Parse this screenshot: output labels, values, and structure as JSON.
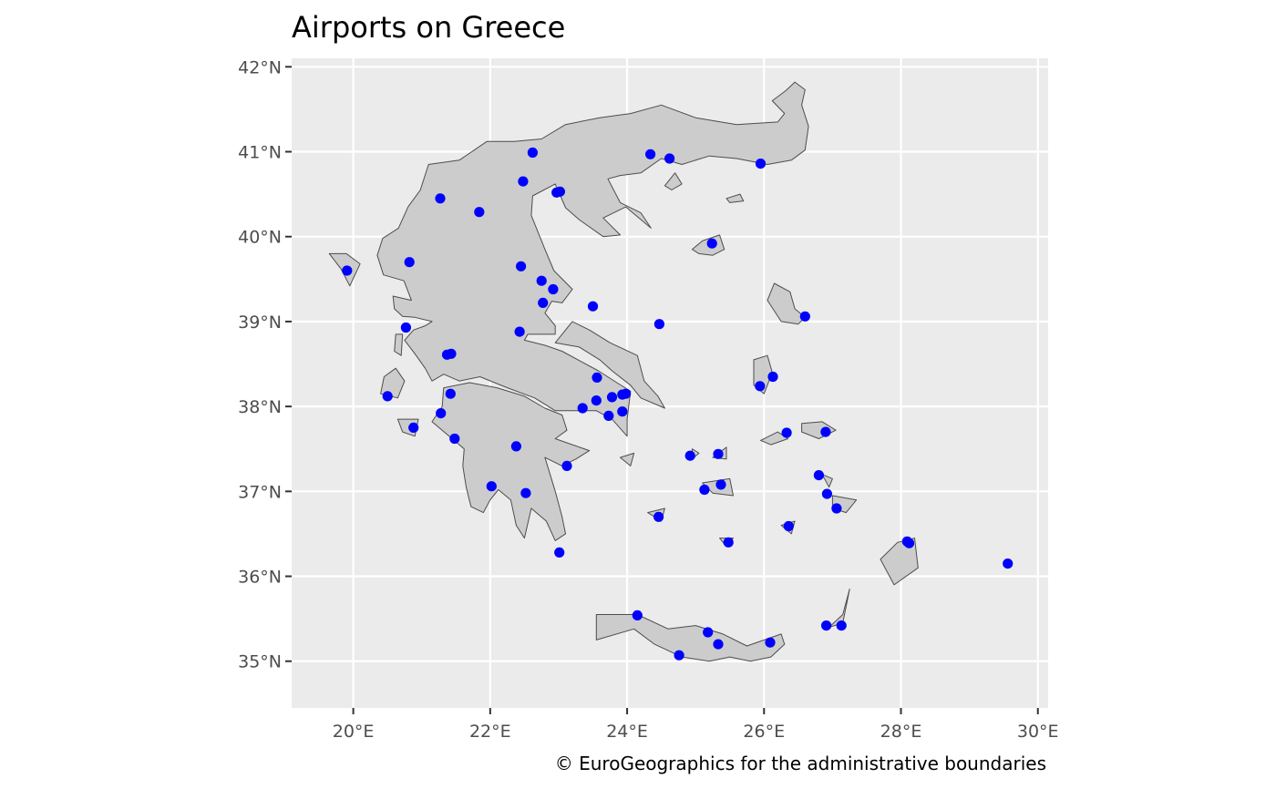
{
  "title": "Airports on Greece",
  "caption": "© EuroGeographics for the administrative boundaries",
  "axes": {
    "lon_range": [
      19.1,
      30.15
    ],
    "lat_range": [
      34.45,
      42.1
    ],
    "lon_ticks": [
      20,
      22,
      24,
      26,
      28,
      30
    ],
    "lat_ticks": [
      35,
      36,
      37,
      38,
      39,
      40,
      41,
      42
    ],
    "lon_labels": [
      "20°E",
      "22°E",
      "24°E",
      "26°E",
      "28°E",
      "30°E"
    ],
    "lat_labels": [
      "35°N",
      "36°N",
      "37°N",
      "38°N",
      "39°N",
      "40°N",
      "41°N",
      "42°N"
    ]
  },
  "colors": {
    "panel": "#ebebeb",
    "land": "#cccccc",
    "border": "#4d4d4d",
    "airport": "#0000ff"
  },
  "mainland": [
    [
      20.85,
      39.25
    ],
    [
      20.74,
      39.48
    ],
    [
      20.44,
      39.55
    ],
    [
      20.35,
      39.78
    ],
    [
      20.43,
      39.98
    ],
    [
      20.66,
      40.1
    ],
    [
      20.8,
      40.35
    ],
    [
      20.98,
      40.55
    ],
    [
      21.1,
      40.85
    ],
    [
      21.55,
      40.9
    ],
    [
      21.95,
      41.12
    ],
    [
      22.35,
      41.12
    ],
    [
      22.75,
      41.15
    ],
    [
      23.1,
      41.32
    ],
    [
      23.6,
      41.4
    ],
    [
      24.05,
      41.45
    ],
    [
      24.5,
      41.55
    ],
    [
      25.0,
      41.4
    ],
    [
      25.6,
      41.32
    ],
    [
      26.2,
      41.35
    ],
    [
      26.3,
      41.45
    ],
    [
      26.12,
      41.6
    ],
    [
      26.32,
      41.72
    ],
    [
      26.45,
      41.82
    ],
    [
      26.6,
      41.73
    ],
    [
      26.55,
      41.55
    ],
    [
      26.65,
      41.3
    ],
    [
      26.6,
      41.02
    ],
    [
      26.4,
      40.9
    ],
    [
      26.05,
      40.85
    ],
    [
      25.6,
      40.92
    ],
    [
      25.2,
      40.95
    ],
    [
      24.8,
      40.85
    ],
    [
      24.5,
      40.92
    ],
    [
      24.2,
      40.75
    ],
    [
      23.9,
      40.72
    ],
    [
      23.72,
      40.68
    ],
    [
      23.9,
      40.4
    ],
    [
      24.2,
      40.28
    ],
    [
      24.35,
      40.1
    ],
    [
      23.98,
      40.35
    ],
    [
      23.65,
      40.22
    ],
    [
      23.9,
      40.02
    ],
    [
      23.65,
      40.0
    ],
    [
      23.3,
      40.2
    ],
    [
      23.1,
      40.34
    ],
    [
      22.95,
      40.62
    ],
    [
      22.62,
      40.48
    ],
    [
      22.6,
      40.25
    ],
    [
      22.8,
      39.85
    ],
    [
      22.93,
      39.6
    ],
    [
      23.2,
      39.38
    ],
    [
      23.05,
      39.22
    ],
    [
      22.9,
      39.24
    ],
    [
      22.8,
      39.1
    ],
    [
      22.95,
      38.95
    ],
    [
      22.95,
      38.85
    ],
    [
      22.55,
      38.85
    ],
    [
      22.5,
      38.78
    ],
    [
      22.8,
      38.72
    ],
    [
      23.05,
      38.65
    ],
    [
      23.35,
      38.52
    ],
    [
      23.58,
      38.42
    ],
    [
      23.85,
      38.28
    ],
    [
      24.05,
      38.18
    ],
    [
      24.0,
      37.85
    ],
    [
      24.0,
      37.65
    ],
    [
      23.78,
      37.85
    ],
    [
      23.55,
      37.95
    ],
    [
      23.25,
      37.95
    ],
    [
      22.95,
      37.95
    ],
    [
      22.65,
      38.1
    ],
    [
      22.25,
      38.22
    ],
    [
      21.85,
      38.35
    ],
    [
      21.55,
      38.3
    ],
    [
      21.32,
      38.38
    ],
    [
      21.15,
      38.3
    ],
    [
      21.05,
      38.45
    ],
    [
      20.9,
      38.62
    ],
    [
      20.75,
      38.78
    ],
    [
      20.88,
      38.9
    ],
    [
      21.05,
      38.95
    ],
    [
      21.15,
      39.0
    ],
    [
      20.9,
      39.05
    ],
    [
      20.72,
      39.06
    ],
    [
      20.6,
      39.15
    ],
    [
      20.58,
      39.3
    ],
    [
      20.85,
      39.25
    ]
  ],
  "peloponnese": [
    [
      21.32,
      38.22
    ],
    [
      21.7,
      38.28
    ],
    [
      22.1,
      38.22
    ],
    [
      22.5,
      38.12
    ],
    [
      22.8,
      37.98
    ],
    [
      23.05,
      37.9
    ],
    [
      23.12,
      37.72
    ],
    [
      22.95,
      37.62
    ],
    [
      23.2,
      37.55
    ],
    [
      23.45,
      37.48
    ],
    [
      23.25,
      37.38
    ],
    [
      23.05,
      37.3
    ],
    [
      22.8,
      37.4
    ],
    [
      22.95,
      37.0
    ],
    [
      23.05,
      36.7
    ],
    [
      23.1,
      36.5
    ],
    [
      22.95,
      36.42
    ],
    [
      22.82,
      36.65
    ],
    [
      22.6,
      36.8
    ],
    [
      22.5,
      36.45
    ],
    [
      22.38,
      36.6
    ],
    [
      22.3,
      36.9
    ],
    [
      22.12,
      37.02
    ],
    [
      22.0,
      36.9
    ],
    [
      21.9,
      36.75
    ],
    [
      21.72,
      36.82
    ],
    [
      21.65,
      37.05
    ],
    [
      21.6,
      37.3
    ],
    [
      21.62,
      37.5
    ],
    [
      21.4,
      37.65
    ],
    [
      21.15,
      37.82
    ],
    [
      21.3,
      38.0
    ],
    [
      21.32,
      38.22
    ]
  ],
  "islands": [
    [
      [
        22.95,
        38.75
      ],
      [
        23.3,
        38.7
      ],
      [
        23.6,
        38.55
      ],
      [
        23.78,
        38.42
      ],
      [
        24.05,
        38.25
      ],
      [
        24.2,
        38.1
      ],
      [
        24.55,
        37.98
      ],
      [
        24.45,
        38.12
      ],
      [
        24.25,
        38.3
      ],
      [
        24.15,
        38.6
      ],
      [
        23.75,
        38.75
      ],
      [
        23.45,
        38.9
      ],
      [
        23.2,
        39.0
      ],
      [
        22.95,
        38.75
      ]
    ],
    [
      [
        26.15,
        39.45
      ],
      [
        26.05,
        39.25
      ],
      [
        26.25,
        39.0
      ],
      [
        26.5,
        38.97
      ],
      [
        26.6,
        39.05
      ],
      [
        26.45,
        39.15
      ],
      [
        26.38,
        39.35
      ],
      [
        26.15,
        39.45
      ]
    ],
    [
      [
        24.95,
        39.85
      ],
      [
        25.1,
        39.95
      ],
      [
        25.35,
        40.02
      ],
      [
        25.42,
        39.85
      ],
      [
        25.25,
        39.78
      ],
      [
        25.05,
        39.8
      ],
      [
        24.95,
        39.85
      ]
    ],
    [
      [
        24.55,
        40.6
      ],
      [
        24.7,
        40.75
      ],
      [
        24.8,
        40.62
      ],
      [
        24.65,
        40.55
      ],
      [
        24.55,
        40.6
      ]
    ],
    [
      [
        25.45,
        40.45
      ],
      [
        25.65,
        40.5
      ],
      [
        25.7,
        40.42
      ],
      [
        25.5,
        40.4
      ],
      [
        25.45,
        40.45
      ]
    ],
    [
      [
        25.85,
        38.55
      ],
      [
        26.05,
        38.6
      ],
      [
        26.12,
        38.4
      ],
      [
        26.0,
        38.15
      ],
      [
        25.85,
        38.25
      ],
      [
        25.85,
        38.55
      ]
    ],
    [
      [
        26.55,
        37.8
      ],
      [
        26.85,
        37.82
      ],
      [
        27.05,
        37.72
      ],
      [
        26.8,
        37.62
      ],
      [
        26.55,
        37.7
      ],
      [
        26.55,
        37.8
      ]
    ],
    [
      [
        25.95,
        37.6
      ],
      [
        26.2,
        37.7
      ],
      [
        26.35,
        37.62
      ],
      [
        26.1,
        37.55
      ],
      [
        25.95,
        37.6
      ]
    ],
    [
      [
        19.65,
        39.8
      ],
      [
        19.9,
        39.8
      ],
      [
        20.1,
        39.68
      ],
      [
        19.95,
        39.42
      ],
      [
        19.82,
        39.62
      ],
      [
        19.65,
        39.8
      ]
    ],
    [
      [
        20.62,
        38.85
      ],
      [
        20.72,
        38.85
      ],
      [
        20.7,
        38.6
      ],
      [
        20.6,
        38.65
      ],
      [
        20.62,
        38.85
      ]
    ],
    [
      [
        20.45,
        38.35
      ],
      [
        20.62,
        38.45
      ],
      [
        20.75,
        38.3
      ],
      [
        20.65,
        38.1
      ],
      [
        20.4,
        38.15
      ],
      [
        20.45,
        38.35
      ]
    ],
    [
      [
        20.65,
        37.85
      ],
      [
        20.95,
        37.85
      ],
      [
        20.9,
        37.65
      ],
      [
        20.72,
        37.7
      ],
      [
        20.65,
        37.85
      ]
    ],
    [
      [
        23.55,
        35.55
      ],
      [
        23.55,
        35.25
      ],
      [
        24.1,
        35.38
      ],
      [
        24.4,
        35.2
      ],
      [
        24.8,
        35.05
      ],
      [
        25.2,
        35.0
      ],
      [
        25.5,
        35.05
      ],
      [
        25.8,
        35.0
      ],
      [
        26.1,
        35.05
      ],
      [
        26.3,
        35.2
      ],
      [
        26.25,
        35.32
      ],
      [
        25.75,
        35.18
      ],
      [
        25.4,
        35.32
      ],
      [
        25.0,
        35.42
      ],
      [
        24.6,
        35.38
      ],
      [
        24.15,
        35.55
      ],
      [
        23.8,
        35.55
      ],
      [
        23.55,
        35.55
      ]
    ],
    [
      [
        27.7,
        36.2
      ],
      [
        27.95,
        36.4
      ],
      [
        28.2,
        36.45
      ],
      [
        28.25,
        36.1
      ],
      [
        27.9,
        35.9
      ],
      [
        27.7,
        36.2
      ]
    ],
    [
      [
        26.95,
        35.4
      ],
      [
        27.15,
        35.55
      ],
      [
        27.25,
        35.85
      ],
      [
        27.15,
        35.45
      ],
      [
        26.95,
        35.4
      ]
    ],
    [
      [
        26.85,
        37.2
      ],
      [
        27.0,
        37.15
      ],
      [
        26.95,
        37.05
      ],
      [
        26.85,
        37.2
      ]
    ],
    [
      [
        27.0,
        36.95
      ],
      [
        27.35,
        36.9
      ],
      [
        27.2,
        36.75
      ],
      [
        27.0,
        36.8
      ],
      [
        27.0,
        36.95
      ]
    ],
    [
      [
        24.95,
        37.5
      ],
      [
        25.05,
        37.45
      ],
      [
        24.95,
        37.38
      ],
      [
        24.95,
        37.5
      ]
    ],
    [
      [
        25.25,
        37.4
      ],
      [
        25.45,
        37.52
      ],
      [
        25.45,
        37.38
      ],
      [
        25.25,
        37.4
      ]
    ],
    [
      [
        25.1,
        37.1
      ],
      [
        25.5,
        37.15
      ],
      [
        25.55,
        36.95
      ],
      [
        25.25,
        36.98
      ],
      [
        25.1,
        37.1
      ]
    ],
    [
      [
        25.35,
        36.45
      ],
      [
        25.55,
        36.45
      ],
      [
        25.45,
        36.35
      ],
      [
        25.35,
        36.45
      ]
    ],
    [
      [
        24.3,
        36.75
      ],
      [
        24.55,
        36.8
      ],
      [
        24.5,
        36.65
      ],
      [
        24.3,
        36.75
      ]
    ],
    [
      [
        26.25,
        36.6
      ],
      [
        26.45,
        36.65
      ],
      [
        26.4,
        36.5
      ],
      [
        26.25,
        36.6
      ]
    ],
    [
      [
        23.9,
        37.4
      ],
      [
        24.1,
        37.45
      ],
      [
        24.05,
        37.3
      ],
      [
        23.9,
        37.4
      ]
    ]
  ],
  "airports": [
    [
      22.62,
      40.99
    ],
    [
      22.48,
      40.65
    ],
    [
      22.97,
      40.52
    ],
    [
      23.02,
      40.53
    ],
    [
      21.27,
      40.45
    ],
    [
      21.84,
      40.29
    ],
    [
      24.34,
      40.97
    ],
    [
      24.62,
      40.92
    ],
    [
      25.95,
      40.86
    ],
    [
      25.24,
      39.92
    ],
    [
      19.91,
      39.6
    ],
    [
      20.82,
      39.7
    ],
    [
      22.45,
      39.65
    ],
    [
      22.75,
      39.48
    ],
    [
      22.92,
      39.38
    ],
    [
      22.77,
      39.22
    ],
    [
      23.5,
      39.18
    ],
    [
      24.47,
      38.97
    ],
    [
      26.6,
      39.06
    ],
    [
      20.77,
      38.93
    ],
    [
      22.43,
      38.88
    ],
    [
      21.37,
      38.61
    ],
    [
      21.43,
      38.62
    ],
    [
      23.56,
      38.34
    ],
    [
      20.5,
      38.12
    ],
    [
      21.42,
      38.15
    ],
    [
      23.55,
      38.07
    ],
    [
      23.35,
      37.98
    ],
    [
      23.78,
      38.11
    ],
    [
      23.93,
      38.14
    ],
    [
      23.98,
      38.15
    ],
    [
      23.73,
      37.89
    ],
    [
      23.93,
      37.94
    ],
    [
      21.28,
      37.92
    ],
    [
      20.88,
      37.75
    ],
    [
      21.48,
      37.62
    ],
    [
      22.38,
      37.53
    ],
    [
      23.12,
      37.3
    ],
    [
      22.02,
      37.06
    ],
    [
      22.52,
      36.98
    ],
    [
      23.01,
      36.28
    ],
    [
      25.94,
      38.24
    ],
    [
      26.13,
      38.35
    ],
    [
      26.33,
      37.69
    ],
    [
      26.9,
      37.7
    ],
    [
      24.92,
      37.42
    ],
    [
      25.33,
      37.44
    ],
    [
      26.8,
      37.19
    ],
    [
      26.92,
      36.97
    ],
    [
      25.13,
      37.02
    ],
    [
      25.37,
      37.08
    ],
    [
      27.06,
      36.8
    ],
    [
      24.46,
      36.7
    ],
    [
      26.36,
      36.59
    ],
    [
      25.48,
      36.4
    ],
    [
      28.09,
      36.41
    ],
    [
      28.12,
      36.39
    ],
    [
      29.56,
      36.15
    ],
    [
      24.15,
      35.54
    ],
    [
      25.18,
      35.34
    ],
    [
      25.33,
      35.2
    ],
    [
      26.09,
      35.22
    ],
    [
      24.76,
      35.07
    ],
    [
      26.91,
      35.42
    ],
    [
      27.13,
      35.42
    ]
  ]
}
